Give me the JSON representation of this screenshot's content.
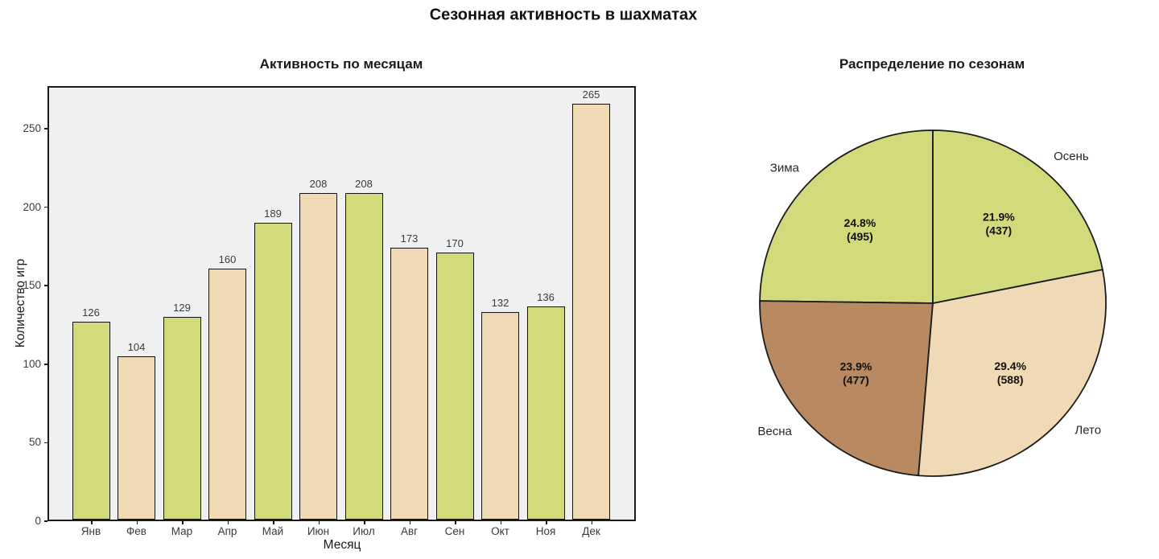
{
  "figure": {
    "title": "Сезонная активность в шахматах"
  },
  "colors": {
    "green": "#d2da7c",
    "tan": "#f0d9b5",
    "brown": "#b98a62",
    "plot_background": "#f0f0f0",
    "edge": "#1a1a1a"
  },
  "chart_data": [
    {
      "type": "bar",
      "title": "Активность по месяцам",
      "xlabel": "Месяц",
      "ylabel": "Количество игр",
      "categories": [
        "Янв",
        "Фев",
        "Мар",
        "Апр",
        "Май",
        "Июн",
        "Июл",
        "Авг",
        "Сен",
        "Окт",
        "Ноя",
        "Дек"
      ],
      "values": [
        126,
        104,
        129,
        160,
        189,
        208,
        208,
        173,
        170,
        132,
        136,
        265
      ],
      "bar_colors": [
        "green",
        "tan",
        "green",
        "tan",
        "green",
        "tan",
        "green",
        "tan",
        "green",
        "tan",
        "green",
        "tan"
      ],
      "yticks": [
        0,
        50,
        100,
        150,
        200,
        250
      ],
      "ylim": [
        0,
        277
      ],
      "grid": false,
      "value_labels_shown": true
    },
    {
      "type": "pie",
      "title": "Распределение по сезонам",
      "start_angle": 90,
      "direction": "counterclockwise",
      "slices": [
        {
          "label": "Зима",
          "value": 495,
          "pct_label": "24.8%",
          "count_label": "(495)",
          "color": "green"
        },
        {
          "label": "Весна",
          "value": 477,
          "pct_label": "23.9%",
          "count_label": "(477)",
          "color": "brown"
        },
        {
          "label": "Лето",
          "value": 588,
          "pct_label": "29.4%",
          "count_label": "(588)",
          "color": "tan"
        },
        {
          "label": "Осень",
          "value": 437,
          "pct_label": "21.9%",
          "count_label": "(437)",
          "color": "green"
        }
      ]
    }
  ]
}
